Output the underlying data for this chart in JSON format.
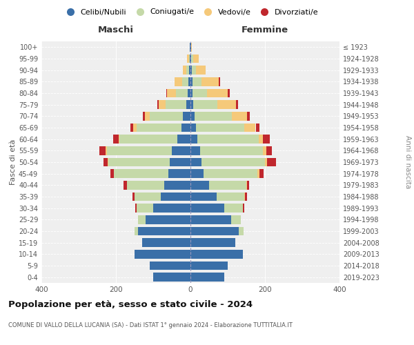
{
  "age_groups": [
    "0-4",
    "5-9",
    "10-14",
    "15-19",
    "20-24",
    "25-29",
    "30-34",
    "35-39",
    "40-44",
    "45-49",
    "50-54",
    "55-59",
    "60-64",
    "65-69",
    "70-74",
    "75-79",
    "80-84",
    "85-89",
    "90-94",
    "95-99",
    "100+"
  ],
  "birth_years": [
    "2019-2023",
    "2014-2018",
    "2009-2013",
    "2004-2008",
    "1999-2003",
    "1994-1998",
    "1989-1993",
    "1984-1988",
    "1979-1983",
    "1974-1978",
    "1969-1973",
    "1964-1968",
    "1959-1963",
    "1954-1958",
    "1949-1953",
    "1944-1948",
    "1939-1943",
    "1934-1938",
    "1929-1933",
    "1924-1928",
    "≤ 1923"
  ],
  "colors": {
    "celibi": "#3a6fa8",
    "coniugati": "#c5d9a8",
    "vedovi": "#f5c97a",
    "divorziati": "#c0272d"
  },
  "maschi": {
    "celibi": [
      100,
      110,
      150,
      130,
      140,
      120,
      100,
      80,
      70,
      60,
      55,
      50,
      35,
      25,
      20,
      12,
      8,
      5,
      3,
      2,
      1
    ],
    "coniugati": [
      0,
      0,
      0,
      0,
      10,
      20,
      45,
      70,
      100,
      145,
      165,
      175,
      155,
      120,
      90,
      55,
      30,
      18,
      8,
      2,
      0
    ],
    "vedovi": [
      0,
      0,
      0,
      0,
      0,
      0,
      0,
      0,
      1,
      1,
      2,
      2,
      3,
      8,
      12,
      18,
      25,
      20,
      10,
      5,
      0
    ],
    "divorziati": [
      0,
      0,
      0,
      0,
      0,
      0,
      3,
      5,
      8,
      8,
      12,
      18,
      15,
      8,
      6,
      3,
      2,
      0,
      0,
      0,
      0
    ]
  },
  "femmine": {
    "celibi": [
      90,
      100,
      140,
      120,
      130,
      110,
      90,
      70,
      50,
      35,
      30,
      25,
      18,
      15,
      12,
      8,
      5,
      5,
      3,
      2,
      1
    ],
    "coniugati": [
      0,
      0,
      0,
      0,
      12,
      25,
      50,
      75,
      100,
      145,
      170,
      170,
      165,
      130,
      100,
      65,
      40,
      25,
      12,
      5,
      0
    ],
    "vedovi": [
      0,
      0,
      0,
      0,
      0,
      0,
      0,
      2,
      2,
      5,
      5,
      8,
      12,
      30,
      40,
      50,
      55,
      45,
      25,
      15,
      2
    ],
    "divorziati": [
      0,
      0,
      0,
      0,
      0,
      0,
      5,
      5,
      5,
      12,
      25,
      15,
      18,
      10,
      8,
      5,
      5,
      5,
      0,
      0,
      0
    ]
  },
  "xlim": 400,
  "title": "Popolazione per età, sesso e stato civile - 2024",
  "subtitle": "COMUNE DI VALLO DELLA LUCANIA (SA) - Dati ISTAT 1° gennaio 2024 - Elaborazione TUTTITALIA.IT",
  "ylabel_left": "Fasce di età",
  "ylabel_right": "Anni di nascita",
  "xlabel_left": "Maschi",
  "xlabel_right": "Femmine"
}
